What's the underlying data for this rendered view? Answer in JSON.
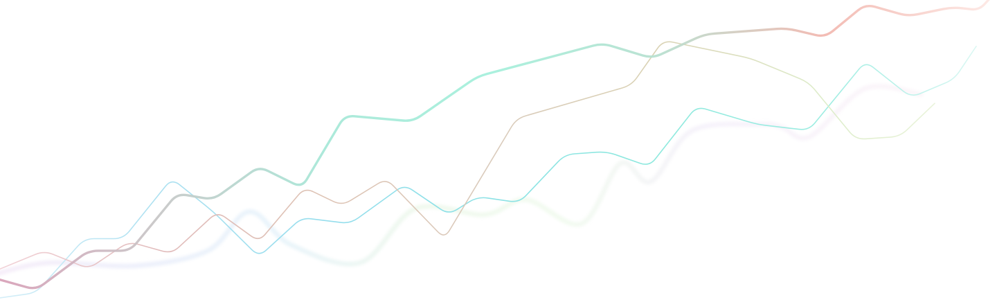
{
  "artwork": {
    "kind": "decorative-line-graphic",
    "background": "#ffffff",
    "lines": [
      {
        "id": "teal-thick",
        "gradient": [
          "#d9a0b8",
          "#c8c8c8",
          "#a8e8d8",
          "#a6f0dc",
          "#b8e0d0",
          "#f2b8b0",
          "#fde8e4"
        ],
        "emphasis": "bold",
        "y": [
          0.09,
          0.05,
          0.18,
          0.18,
          0.37,
          0.35,
          0.46,
          0.39,
          0.63,
          0.61,
          0.76,
          0.87,
          0.82,
          0.9,
          0.92,
          0.89,
          1.0,
          0.96,
          0.99,
          0.98,
          1.02
        ]
      },
      {
        "id": "cyan-thin",
        "gradient": [
          "#d4eef8",
          "#a8dff0",
          "#90dcec",
          "#86e0e4",
          "#88e8dc",
          "#98ece0",
          "#dff8f4"
        ],
        "emphasis": "thin",
        "y": [
          0.02,
          0.04,
          0.22,
          0.22,
          0.42,
          0.31,
          0.16,
          0.29,
          0.27,
          0.4,
          0.3,
          0.36,
          0.34,
          0.5,
          0.51,
          0.46,
          0.66,
          0.6,
          0.58,
          0.81,
          0.69,
          0.75,
          0.86
        ]
      },
      {
        "id": "rose-thin",
        "gradient": [
          "#f2d0d6",
          "#e0b8b8",
          "#dcc0b0",
          "#d8c8b8",
          "#d8d0b0",
          "#dcecc8",
          "#eef6e0"
        ],
        "emphasis": "thin",
        "y": [
          0.11,
          0.18,
          0.12,
          0.21,
          0.17,
          0.31,
          0.21,
          0.39,
          0.33,
          0.42,
          0.22,
          0.62,
          0.73,
          0.88,
          0.82,
          0.74,
          0.55,
          0.56,
          0.67
        ]
      },
      {
        "id": "lavender-soft",
        "gradient": [
          "#f0e0f4",
          "#e0e4f8",
          "#d8ecf8",
          "#e4f4e0",
          "#e8f8e4",
          "#efe8f8",
          "#f6ecf6",
          "#fbf0f4"
        ],
        "emphasis": "soft",
        "y": [
          0.1,
          0.14,
          0.13,
          0.18,
          0.31,
          0.2,
          0.14,
          0.32,
          0.3,
          0.35,
          0.27,
          0.47,
          0.41,
          0.58,
          0.6,
          0.59,
          0.56,
          0.72,
          0.7
        ]
      }
    ]
  }
}
